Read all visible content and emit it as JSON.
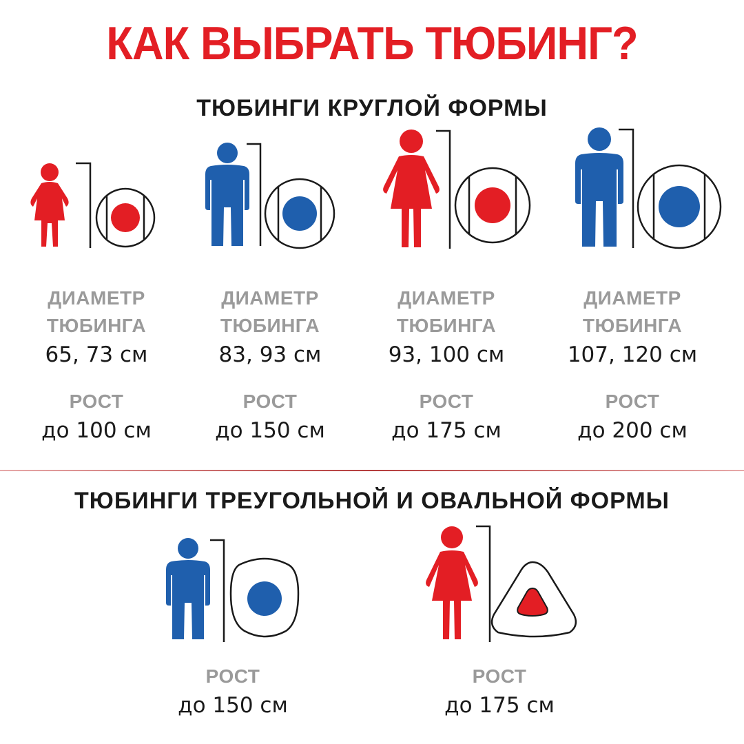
{
  "title": "КАК ВЫБРАТЬ ТЮБИНГ?",
  "colors": {
    "red": "#e31e24",
    "blue": "#1f5fad",
    "gray": "#9a9a9a",
    "ink": "#1a1a1a"
  },
  "round_section": {
    "heading": "ТЮБИНГИ КРУГЛОЙ ФОРМЫ",
    "items": [
      {
        "figure": "child-icon",
        "color": "red",
        "diameter_label_1": "ДИАМЕТР",
        "diameter_label_2": "ТЮБИНГА",
        "diameter": "65, 73 см",
        "height_label": "РОСТ",
        "height": "до 100 см"
      },
      {
        "figure": "man-icon",
        "color": "blue",
        "diameter_label_1": "ДИАМЕТР",
        "diameter_label_2": "ТЮБИНГА",
        "diameter": "83, 93 см",
        "height_label": "РОСТ",
        "height": "до 150 см"
      },
      {
        "figure": "woman-icon",
        "color": "red",
        "diameter_label_1": "ДИАМЕТР",
        "diameter_label_2": "ТЮБИНГА",
        "diameter": "93, 100 см",
        "height_label": "РОСТ",
        "height": "до 175 см"
      },
      {
        "figure": "man-icon",
        "color": "blue",
        "diameter_label_1": "ДИАМЕТР",
        "diameter_label_2": "ТЮБИНГА",
        "diameter": "107, 120 см",
        "height_label": "РОСТ",
        "height": "до 200 см"
      }
    ]
  },
  "other_section": {
    "heading": "ТЮБИНГИ ТРЕУГОЛЬНОЙ И ОВАЛЬНОЙ ФОРМЫ",
    "items": [
      {
        "figure": "man-icon",
        "color": "blue",
        "tube": "oval-tube-icon",
        "height_label": "РОСТ",
        "height": "до 150 см"
      },
      {
        "figure": "woman-icon",
        "color": "red",
        "tube": "triangle-tube-icon",
        "height_label": "РОСТ",
        "height": "до 175 см"
      }
    ]
  }
}
